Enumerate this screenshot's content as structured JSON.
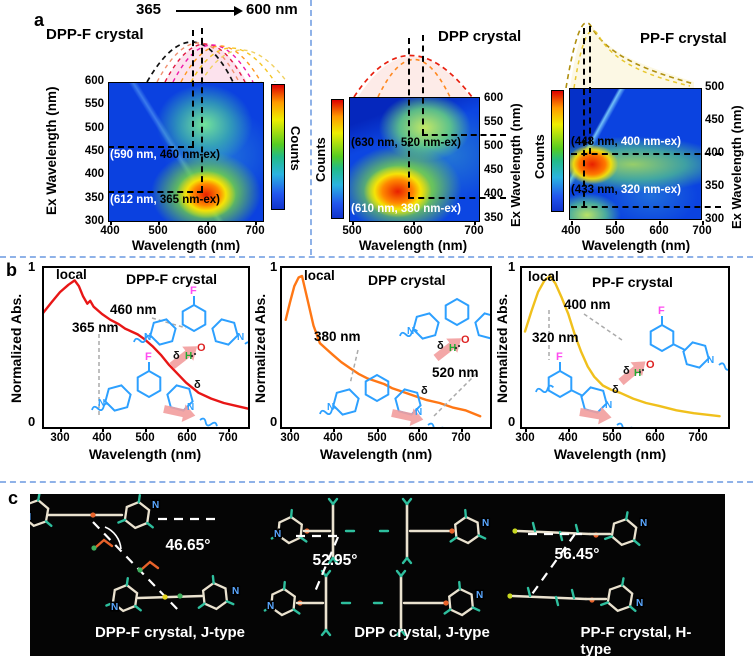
{
  "panel_a": {
    "label": "a",
    "arrow_from": "365",
    "arrow_to": "600 nm",
    "maps": [
      {
        "title": "DPP-F crystal",
        "counts": "Counts",
        "xlabel": "Wavelength (nm)",
        "ylabel": "Ex Wavelength (nm)",
        "yticks": [
          "600",
          "550",
          "500",
          "450",
          "400",
          "350",
          "300"
        ],
        "xticks": [
          "400",
          "500",
          "600",
          "700"
        ],
        "ann1_left": "(590 nm,",
        "ann1_right": " 460 nm-ex)",
        "ann2_left": "(612 nm,",
        "ann2_right": " 365 nm-ex)"
      },
      {
        "title": "DPP crystal",
        "counts": "Counts",
        "xlabel": "Wavelength (nm)",
        "ylabel": "Ex Wavelength (nm)",
        "yticks": [
          "600",
          "550",
          "500",
          "450",
          "400",
          "350"
        ],
        "xticks": [
          "500",
          "600",
          "700"
        ],
        "ann1_left": "(630 nm,",
        "ann1_right": " 520 nm-ex)",
        "ann2_left": "(610 nm,",
        "ann2_right": " 380 nm-ex)"
      },
      {
        "title": "PP-F crystal",
        "counts": "Counts",
        "xlabel": "Wavelength (nm)",
        "ylabel": "Ex Wavelength (nm)",
        "yticks": [
          "500",
          "450",
          "400",
          "350",
          "300"
        ],
        "xticks": [
          "400",
          "500",
          "600",
          "700"
        ],
        "ann1_left": "(448 nm,",
        "ann1_right": " 400 nm-ex)",
        "ann2_left": "(433 nm,",
        "ann2_right": " 320 nm-ex)"
      }
    ]
  },
  "panel_b": {
    "label": "b",
    "atoms": {
      "f": "F",
      "n": "N",
      "delta": "δ",
      "h": "H",
      "o": "O"
    },
    "plots": [
      {
        "title": "DPP-F crystal",
        "local": "local",
        "ylabel": "Normalized Abs.",
        "xlabel": "Wavelength (nm)",
        "ymax": "1",
        "ymin": "0",
        "xticks": [
          "300",
          "400",
          "500",
          "600",
          "700"
        ],
        "peak_a": "365 nm",
        "peak_b": "460 nm"
      },
      {
        "title": "DPP crystal",
        "local": "local",
        "ylabel": "Normalized Abs.",
        "xlabel": "Wavelength (nm)",
        "ymax": "1",
        "ymin": "0",
        "xticks": [
          "300",
          "400",
          "500",
          "600",
          "700"
        ],
        "peak_a": "380 nm",
        "peak_b": "520 nm"
      },
      {
        "title": "PP-F crystal",
        "local": "local",
        "ylabel": "Normalized Abs.",
        "xlabel": "Wavelength (nm)",
        "ymax": "1",
        "ymin": "0",
        "xticks": [
          "300",
          "400",
          "500",
          "600",
          "700"
        ],
        "peak_a": "320 nm",
        "peak_b": "400 nm"
      }
    ]
  },
  "panel_c": {
    "label": "c",
    "items": [
      {
        "angle": "46.65°",
        "caption": "DPP-F crystal, J-type"
      },
      {
        "angle": "52.95°",
        "caption": "DPP crystal, J-type"
      },
      {
        "angle": "56.45°",
        "caption": "PP-F crystal, H-type"
      }
    ]
  },
  "chart_data": [
    {
      "type": "heatmap",
      "title": "DPP-F crystal",
      "xlabel": "Wavelength (nm)",
      "ylabel": "Ex Wavelength (nm)",
      "x_range": [
        400,
        750
      ],
      "y_range": [
        300,
        600
      ],
      "colorbar_label": "Counts",
      "hotspots": [
        {
          "emission_nm": 612,
          "excitation_nm": 365,
          "intensity": "strong"
        },
        {
          "emission_nm": 590,
          "excitation_nm": 460,
          "intensity": "medium"
        }
      ]
    },
    {
      "type": "heatmap",
      "title": "DPP crystal",
      "xlabel": "Wavelength (nm)",
      "ylabel": "Ex Wavelength (nm)",
      "x_range": [
        500,
        730
      ],
      "y_range": [
        340,
        600
      ],
      "colorbar_label": "Counts",
      "hotspots": [
        {
          "emission_nm": 610,
          "excitation_nm": 380,
          "intensity": "strong"
        },
        {
          "emission_nm": 630,
          "excitation_nm": 520,
          "intensity": "medium"
        }
      ]
    },
    {
      "type": "heatmap",
      "title": "PP-F crystal",
      "xlabel": "Wavelength (nm)",
      "ylabel": "Ex Wavelength (nm)",
      "x_range": [
        400,
        700
      ],
      "y_range": [
        300,
        500
      ],
      "colorbar_label": "Counts",
      "hotspots": [
        {
          "emission_nm": 448,
          "excitation_nm": 400,
          "intensity": "strong"
        },
        {
          "emission_nm": 433,
          "excitation_nm": 320,
          "intensity": "medium"
        }
      ]
    },
    {
      "type": "line",
      "title": "DPP-F crystal",
      "xlabel": "Wavelength (nm)",
      "ylabel": "Normalized Abs.",
      "xlim": [
        255,
        755
      ],
      "ylim": [
        0,
        1
      ],
      "annotations": [
        "local",
        "365 nm",
        "460 nm"
      ],
      "series": [
        {
          "name": "absorption",
          "color": "#e81616",
          "x": [
            255,
            280,
            300,
            320,
            335,
            345,
            355,
            365,
            372,
            380,
            400,
            420,
            440,
            455,
            470,
            485,
            500,
            520,
            540,
            560,
            580,
            600,
            630,
            660,
            690,
            720,
            750
          ],
          "y": [
            0.73,
            0.82,
            0.89,
            0.94,
            0.97,
            0.93,
            0.86,
            0.81,
            0.83,
            0.79,
            0.74,
            0.7,
            0.67,
            0.64,
            0.62,
            0.6,
            0.57,
            0.52,
            0.46,
            0.39,
            0.33,
            0.27,
            0.2,
            0.16,
            0.13,
            0.11,
            0.09
          ]
        }
      ]
    },
    {
      "type": "line",
      "title": "DPP crystal",
      "xlabel": "Wavelength (nm)",
      "ylabel": "Normalized Abs.",
      "xlim": [
        285,
        755
      ],
      "ylim": [
        0,
        1
      ],
      "annotations": [
        "local",
        "380 nm",
        "520 nm"
      ],
      "series": [
        {
          "name": "absorption",
          "color": "#ff7715",
          "x": [
            290,
            300,
            310,
            320,
            328,
            340,
            355,
            370,
            385,
            400,
            420,
            440,
            460,
            480,
            500,
            520,
            540,
            560,
            590,
            620,
            650,
            680,
            710,
            745
          ],
          "y": [
            0.7,
            0.82,
            0.93,
            0.99,
            1.0,
            0.85,
            0.66,
            0.54,
            0.5,
            0.46,
            0.41,
            0.37,
            0.33,
            0.3,
            0.28,
            0.26,
            0.23,
            0.21,
            0.18,
            0.15,
            0.13,
            0.1,
            0.08,
            0.04
          ]
        }
      ]
    },
    {
      "type": "line",
      "title": "PP-F crystal",
      "xlabel": "Wavelength (nm)",
      "ylabel": "Normalized Abs.",
      "xlim": [
        295,
        755
      ],
      "ylim": [
        0,
        1
      ],
      "annotations": [
        "local",
        "320 nm",
        "400 nm"
      ],
      "series": [
        {
          "name": "absorption",
          "color": "#f0c01c",
          "x": [
            300,
            315,
            330,
            345,
            358,
            370,
            385,
            400,
            415,
            430,
            445,
            460,
            480,
            500,
            520,
            550,
            580,
            610,
            650,
            690,
            720,
            750
          ],
          "y": [
            0.62,
            0.76,
            0.89,
            0.97,
            1.0,
            0.95,
            0.85,
            0.74,
            0.6,
            0.48,
            0.38,
            0.31,
            0.25,
            0.22,
            0.2,
            0.16,
            0.13,
            0.11,
            0.08,
            0.06,
            0.05,
            0.04
          ]
        }
      ]
    }
  ]
}
